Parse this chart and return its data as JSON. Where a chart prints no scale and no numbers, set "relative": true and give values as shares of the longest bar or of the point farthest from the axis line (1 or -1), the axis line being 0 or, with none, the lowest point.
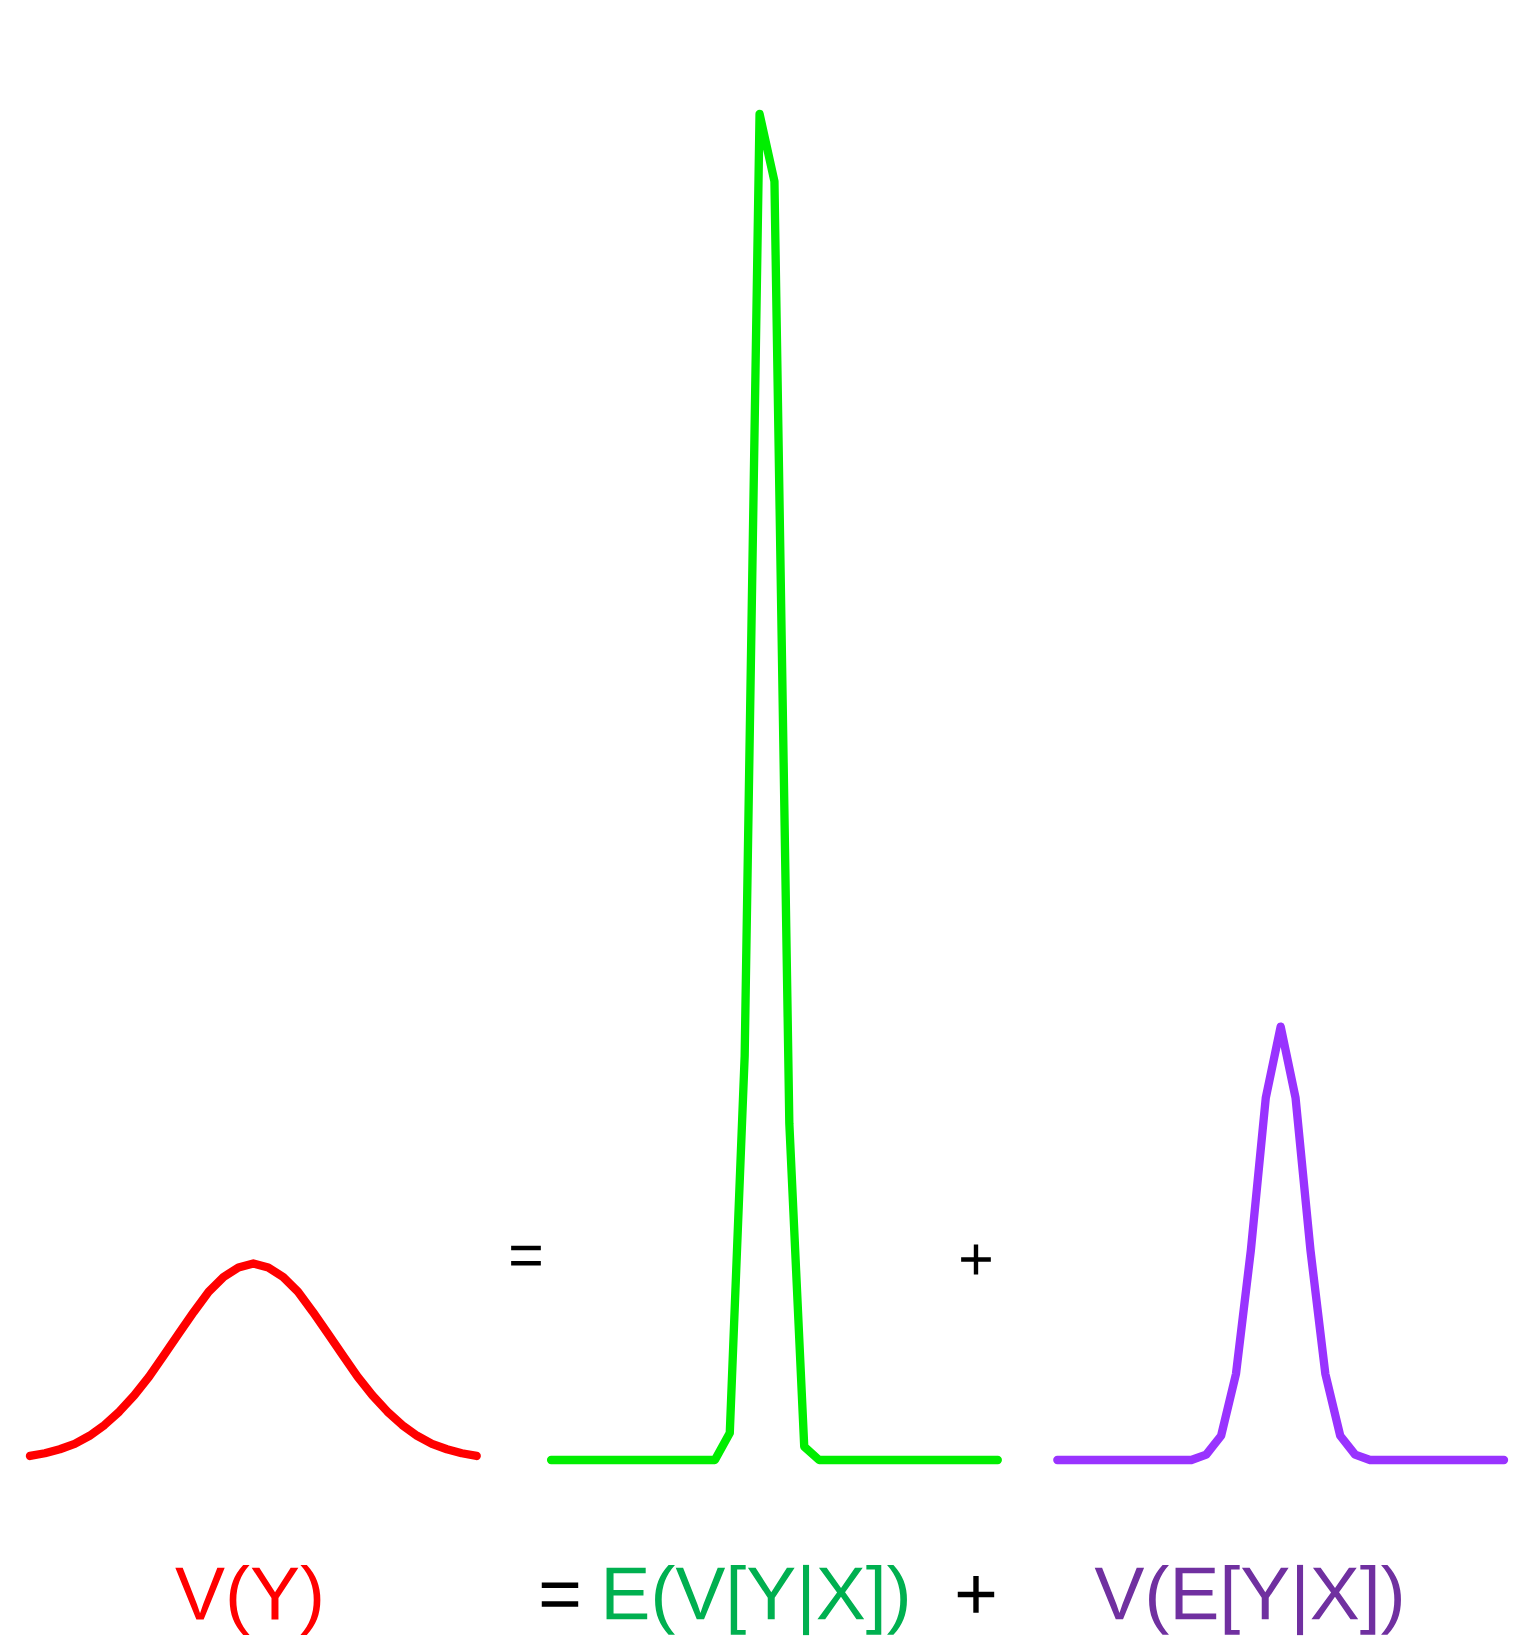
{
  "chart_data": {
    "type": "line",
    "relative": true,
    "categories": [
      null,
      null,
      null,
      null,
      null,
      null,
      null,
      null,
      null,
      null,
      null,
      null,
      null,
      null,
      null,
      null,
      null,
      null,
      null,
      null,
      null,
      null,
      null,
      null,
      null,
      null,
      null,
      null,
      null,
      null,
      null,
      null,
      null,
      null,
      null,
      null,
      null,
      null,
      null,
      null,
      null,
      null,
      null,
      null,
      null,
      null,
      null,
      null,
      null,
      null,
      null,
      null,
      null,
      null,
      null,
      null,
      null,
      null,
      null,
      null,
      null,
      null,
      null,
      null,
      null,
      null,
      null,
      null,
      null,
      null,
      null,
      null,
      null,
      null,
      null,
      null,
      null,
      null,
      null,
      null,
      null,
      null,
      null,
      null,
      null,
      null,
      null,
      null,
      null,
      null,
      null,
      null,
      null,
      null,
      null,
      null,
      null,
      null,
      null,
      null
    ],
    "series": [
      {
        "color": "#ff0000",
        "values": [
          0.003,
          0.005,
          0.008,
          0.012,
          0.018,
          0.026,
          0.036,
          0.048,
          0.062,
          0.078,
          0.094,
          0.11,
          0.125,
          0.136,
          0.143,
          0.146,
          0.143,
          0.136,
          0.125,
          0.11,
          0.094,
          0.078,
          0.062,
          0.048,
          0.036,
          0.026,
          0.018,
          0.012,
          0.008,
          0.005,
          0.003,
          null,
          null,
          null,
          null,
          null,
          null,
          null,
          null,
          null,
          null,
          null,
          null,
          null,
          null,
          null,
          null,
          null,
          null,
          null,
          null,
          null,
          null,
          null,
          null,
          null,
          null,
          null,
          null,
          null,
          null,
          null,
          null,
          null,
          null,
          null,
          null,
          null,
          null,
          null,
          null,
          null,
          null,
          null,
          null,
          null,
          null,
          null,
          null,
          null,
          null,
          null,
          null,
          null,
          null,
          null,
          null,
          null,
          null,
          null,
          null,
          null,
          null,
          null,
          null,
          null,
          null,
          null,
          null,
          null
        ]
      },
      {
        "color": "#00ee00",
        "values": [
          null,
          null,
          null,
          null,
          null,
          null,
          null,
          null,
          null,
          null,
          null,
          null,
          null,
          null,
          null,
          null,
          null,
          null,
          null,
          null,
          null,
          null,
          null,
          null,
          null,
          null,
          null,
          null,
          null,
          null,
          null,
          null,
          null,
          null,
          null,
          0,
          0,
          0,
          0,
          0,
          0,
          0,
          0,
          0,
          0,
          0,
          0,
          0.02,
          0.3,
          1,
          0.95,
          0.25,
          0.01,
          0,
          0,
          0,
          0,
          0,
          0,
          0,
          0,
          0,
          0,
          0,
          0,
          0,
          null,
          null,
          null,
          null,
          null,
          null,
          null,
          null,
          null,
          null,
          null,
          null,
          null,
          null,
          null,
          null,
          null,
          null,
          null,
          null,
          null,
          null,
          null,
          null,
          null,
          null,
          null,
          null,
          null,
          null,
          null,
          null,
          null,
          null
        ]
      },
      {
        "color": "#9933ff",
        "values": [
          null,
          null,
          null,
          null,
          null,
          null,
          null,
          null,
          null,
          null,
          null,
          null,
          null,
          null,
          null,
          null,
          null,
          null,
          null,
          null,
          null,
          null,
          null,
          null,
          null,
          null,
          null,
          null,
          null,
          null,
          null,
          null,
          null,
          null,
          null,
          null,
          null,
          null,
          null,
          null,
          null,
          null,
          null,
          null,
          null,
          null,
          null,
          null,
          null,
          null,
          null,
          null,
          null,
          null,
          null,
          null,
          null,
          null,
          null,
          null,
          null,
          null,
          null,
          null,
          null,
          null,
          null,
          null,
          null,
          0,
          0,
          0,
          0,
          0,
          0,
          0,
          0,
          0,
          0,
          0.004,
          0.018,
          0.064,
          0.156,
          0.269,
          0.322,
          0.269,
          0.156,
          0.064,
          0.018,
          0.004,
          0,
          0,
          0,
          0,
          0,
          0,
          0,
          0,
          0,
          0
        ]
      }
    ],
    "annotations": [
      "=",
      "+",
      "V(Y)",
      "=",
      "E(V[Y|X])",
      "+",
      "V(E[Y|X])"
    ],
    "line_style": "solid",
    "marker": "none"
  }
}
